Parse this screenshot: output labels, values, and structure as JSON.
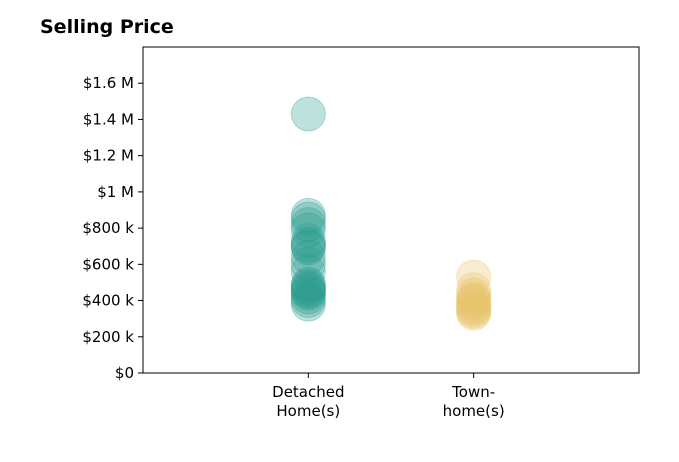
{
  "chart_data": {
    "type": "scatter",
    "title": "Selling Price",
    "categories": [
      "Detached\nHome(s)",
      "Town-\nhome(s)"
    ],
    "y_ticks": [
      {
        "value": 0,
        "label": "$0"
      },
      {
        "value": 200000,
        "label": "$200 k"
      },
      {
        "value": 400000,
        "label": "$400 k"
      },
      {
        "value": 600000,
        "label": "$600 k"
      },
      {
        "value": 800000,
        "label": "$800 k"
      },
      {
        "value": 1000000,
        "label": "$1 M"
      },
      {
        "value": 1200000,
        "label": "$1.2 M"
      },
      {
        "value": 1400000,
        "label": "$1.4 M"
      },
      {
        "value": 1600000,
        "label": "$1.6 M"
      }
    ],
    "ylim": [
      0,
      1800000
    ],
    "xlim": [
      -1,
      2
    ],
    "grid": false,
    "series": [
      {
        "color": "#2a9d8f",
        "category_index": 0,
        "values": [
          1430000,
          870000,
          850000,
          820000,
          790000,
          730000,
          710000,
          700000,
          690000,
          640000,
          600000,
          560000,
          490000,
          480000,
          470000,
          460000,
          450000,
          440000,
          420000,
          400000,
          380000
        ]
      },
      {
        "color": "#e9c46a",
        "category_index": 1,
        "values": [
          530000,
          460000,
          430000,
          410000,
          400000,
          390000,
          370000,
          360000,
          350000,
          340000,
          330000
        ]
      }
    ]
  }
}
